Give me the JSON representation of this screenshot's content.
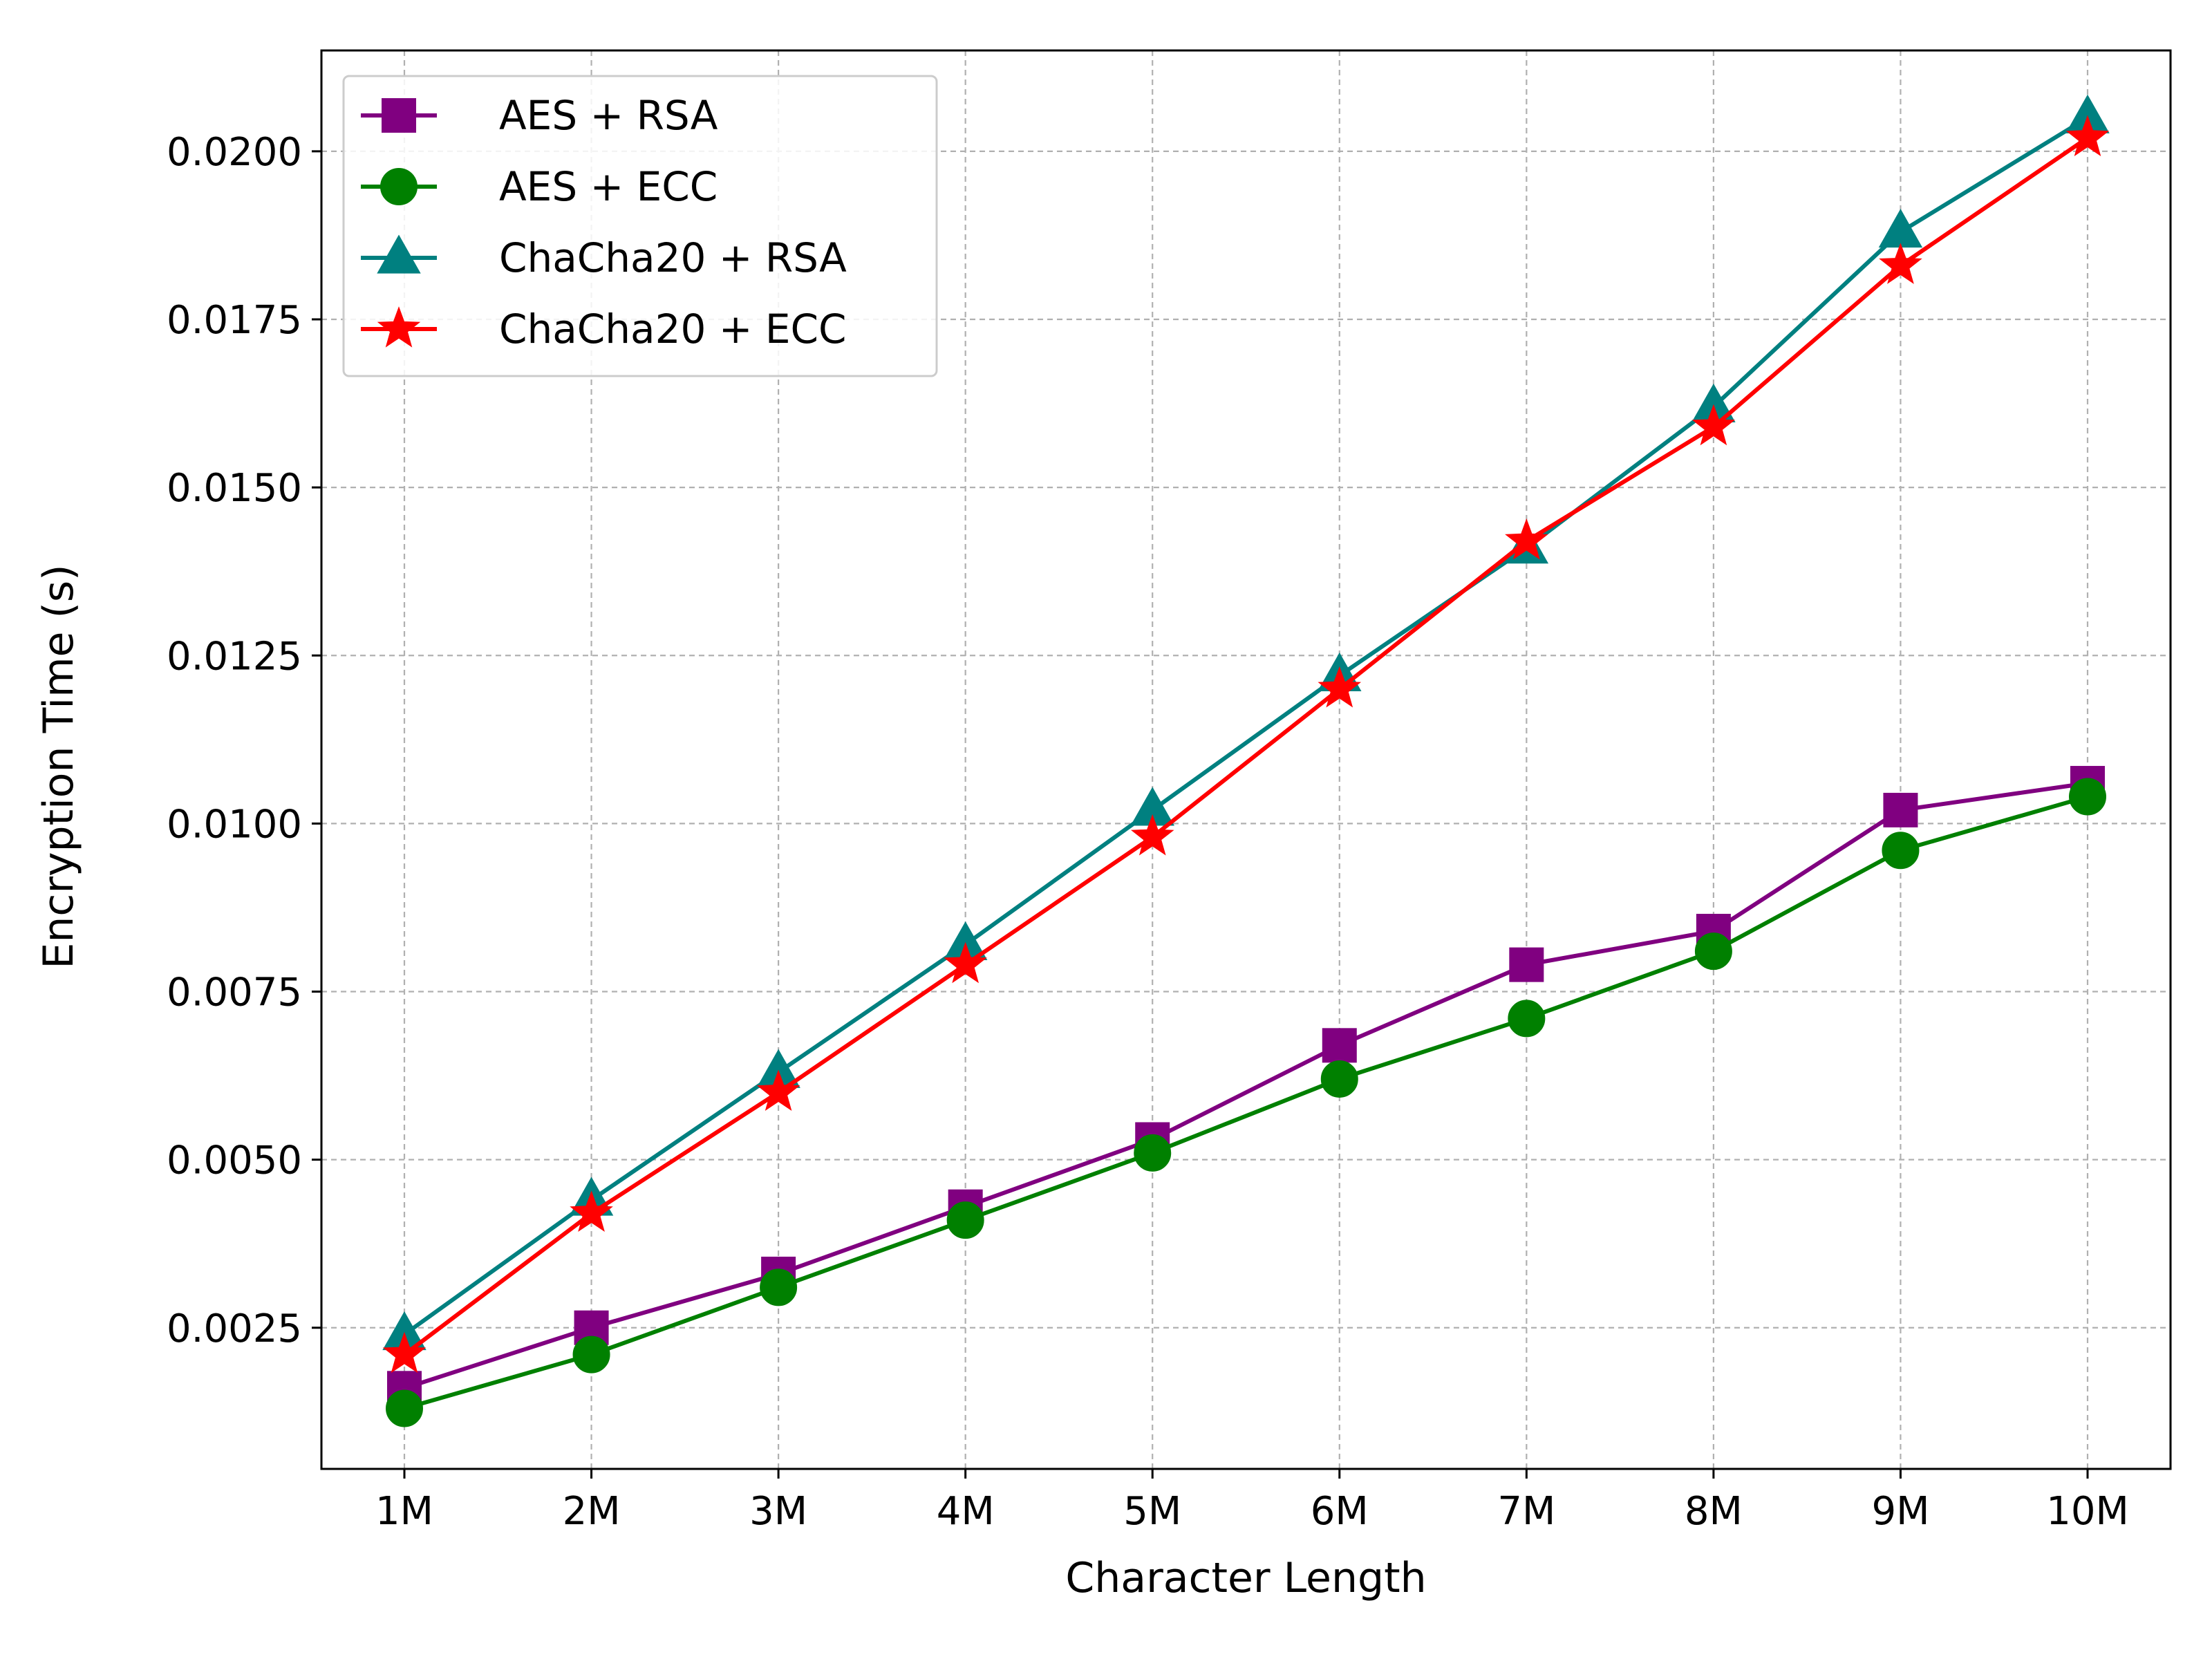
{
  "chart_data": {
    "type": "line",
    "title": "",
    "xlabel": "Character Length",
    "ylabel": "Encryption Time (s)",
    "categories": [
      "1M",
      "2M",
      "3M",
      "4M",
      "5M",
      "6M",
      "7M",
      "8M",
      "9M",
      "10M"
    ],
    "ylim": [
      0.0004,
      0.0215
    ],
    "yticks": [
      "0.0025",
      "0.0050",
      "0.0075",
      "0.0100",
      "0.0125",
      "0.0150",
      "0.0175",
      "0.0200"
    ],
    "grid": true,
    "legend_position": "top-left",
    "series": [
      {
        "name": "AES + RSA",
        "color": "#800080",
        "marker": "square",
        "values": [
          0.0016,
          0.0025,
          0.0033,
          0.0043,
          0.0053,
          0.0067,
          0.0079,
          0.0084,
          0.0102,
          0.0106
        ]
      },
      {
        "name": "AES + ECC",
        "color": "#008000",
        "marker": "circle",
        "values": [
          0.0013,
          0.0021,
          0.0031,
          0.0041,
          0.0051,
          0.0062,
          0.0071,
          0.0081,
          0.0096,
          0.0104
        ]
      },
      {
        "name": "ChaCha20 + RSA",
        "color": "#008080",
        "marker": "triangle",
        "values": [
          0.0024,
          0.0044,
          0.0063,
          0.0082,
          0.0102,
          0.0122,
          0.0141,
          0.0162,
          0.0188,
          0.0205
        ]
      },
      {
        "name": "ChaCha20 + ECC",
        "color": "#ff0000",
        "marker": "star",
        "values": [
          0.0021,
          0.0042,
          0.006,
          0.0079,
          0.0098,
          0.012,
          0.0142,
          0.0159,
          0.0183,
          0.0202
        ]
      }
    ]
  }
}
